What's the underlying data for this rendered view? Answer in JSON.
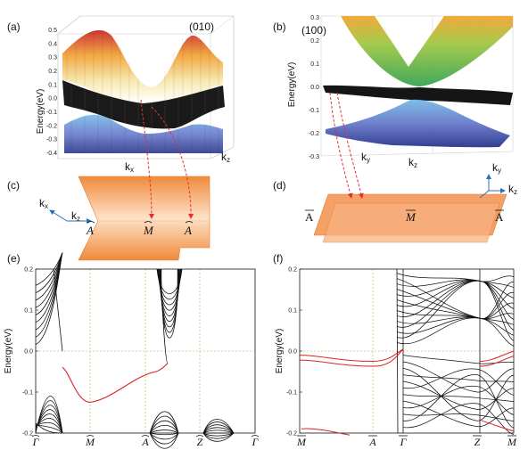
{
  "panels": {
    "a": {
      "label": "(a)",
      "surface": "(010)",
      "axis_k1": "k",
      "axis_k1_sub": "x",
      "axis_k2": "k",
      "axis_k2_sub": "z",
      "ylabel": "Energy(eV)",
      "yticks": [
        "0.5",
        "0.4",
        "0.3",
        "0.2",
        "0.1",
        "0.0",
        "-0.1",
        "-0.2",
        "-0.3",
        "-0.4"
      ]
    },
    "b": {
      "label": "(b)",
      "surface": "(100)",
      "axis_k1": "k",
      "axis_k1_sub": "y",
      "axis_k2": "k",
      "axis_k2_sub": "z",
      "ylabel": "Energy(eV)",
      "yticks": [
        "0.3",
        "0.2",
        "0.1",
        "0.0",
        "-0.1",
        "-0.2",
        "-0.3"
      ]
    },
    "c": {
      "label": "(c)",
      "kx": "k",
      "kx_sub": "x",
      "kz": "k",
      "kz_sub": "z",
      "points": [
        "A",
        "M",
        "A"
      ]
    },
    "d": {
      "label": "(d)",
      "ky": "k",
      "ky_sub": "y",
      "kz": "k",
      "kz_sub": "z",
      "points": [
        "A",
        "M",
        "A"
      ]
    },
    "e": {
      "label": "(e)",
      "ylabel": "Energy(eV)",
      "yticks": [
        "0.2",
        "0.1",
        "0.0",
        "-0.1",
        "-0.2"
      ],
      "xticks": [
        "Γ",
        "M",
        "A",
        "Z",
        "Γ"
      ]
    },
    "f": {
      "label": "(f)",
      "ylabel": "Energy(eV)",
      "yticks": [
        "0.2",
        "0.1",
        "0.0",
        "-0.1",
        "-0.2"
      ],
      "xticks": [
        "M",
        "A",
        "Γ",
        "Z",
        "M"
      ]
    }
  },
  "colors": {
    "bulk_band": "#111111",
    "surface_state": "#dd2222",
    "slab": "#f4a067",
    "guide": "#8fb84a",
    "arrow": "#e03030",
    "axis_arrow": "#2a6fb8"
  }
}
